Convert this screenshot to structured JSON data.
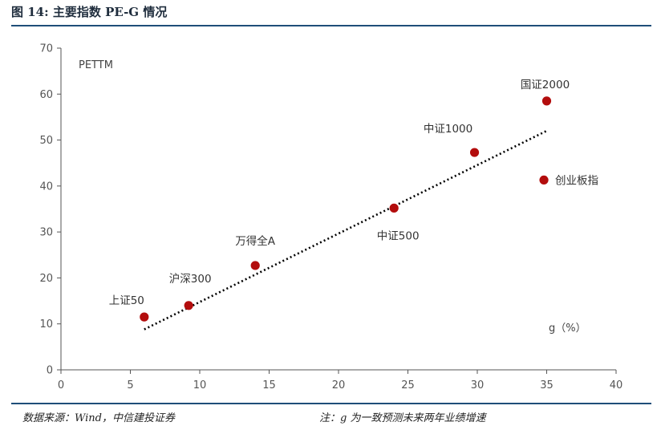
{
  "figure": {
    "title": "图 14:  主要指数 PE-G 情况",
    "source": "数据来源：Wind，中信建投证券",
    "note": "注：g 为一致预测未来两年业绩增速"
  },
  "colors": {
    "point": "#b30d0d",
    "trend": "#000000",
    "rule": "#1f4e79",
    "axis": "#555555"
  },
  "chart_data": {
    "type": "scatter",
    "title": "主要指数 PE-G 情况",
    "ylabel": "PETTM",
    "xlabel": "g（%）",
    "xlim": [
      0,
      40
    ],
    "ylim": [
      0,
      70
    ],
    "xticks": [
      0,
      5,
      10,
      15,
      20,
      25,
      30,
      35,
      40
    ],
    "yticks": [
      0,
      10,
      20,
      30,
      40,
      50,
      60,
      70
    ],
    "grid": false,
    "points": [
      {
        "name": "上证50",
        "x": 6.0,
        "y": 11.5
      },
      {
        "name": "沪深300",
        "x": 9.2,
        "y": 14.0
      },
      {
        "name": "万得全A",
        "x": 14.0,
        "y": 22.7
      },
      {
        "name": "中证500",
        "x": 24.0,
        "y": 35.2
      },
      {
        "name": "中证1000",
        "x": 29.8,
        "y": 47.3
      },
      {
        "name": "国证2000",
        "x": 35.0,
        "y": 58.5
      },
      {
        "name": "创业板指",
        "x": 34.8,
        "y": 41.3
      }
    ],
    "trendline": {
      "style": "dotted",
      "x": [
        6.0,
        35.0
      ],
      "y": [
        8.8,
        52.0
      ]
    }
  }
}
